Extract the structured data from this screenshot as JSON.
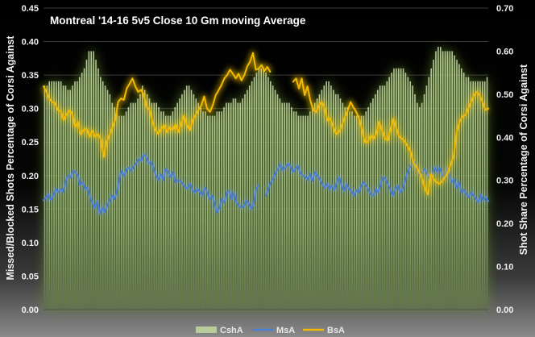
{
  "chart_data": {
    "type": "line",
    "title": "Montreal '14-16 5v5 Close 10 Gm moving Average",
    "ylabel": "Missed/Blocked Shots Percentage of Corsi Against",
    "y2label": "Shot Share Percentage of Corsi Against",
    "ylim": [
      0,
      0.45
    ],
    "y2lim": [
      0,
      0.7
    ],
    "yticks": [
      "0.00",
      "0.05",
      "0.10",
      "0.15",
      "0.20",
      "0.25",
      "0.30",
      "0.35",
      "0.40",
      "0.45"
    ],
    "y2ticks": [
      "0.00",
      "0.10",
      "0.20",
      "0.30",
      "0.40",
      "0.50",
      "0.60",
      "0.70"
    ],
    "grid": true,
    "legend_position": "bottom",
    "colors": {
      "CshA": "#b9cc9c",
      "MsA": "#4a7fd6",
      "BsA": "#f5b800",
      "glow_bars": "#6e9a2e",
      "glow_line": "#ffd000"
    },
    "series": [
      {
        "name": "CshA",
        "kind": "bar",
        "axis": "right",
        "values": [
          0.52,
          0.52,
          0.53,
          0.53,
          0.53,
          0.53,
          0.53,
          0.53,
          0.52,
          0.52,
          0.51,
          0.51,
          0.52,
          0.53,
          0.53,
          0.54,
          0.55,
          0.56,
          0.58,
          0.6,
          0.6,
          0.6,
          0.58,
          0.56,
          0.54,
          0.53,
          0.52,
          0.51,
          0.5,
          0.48,
          0.47,
          0.46,
          0.45,
          0.45,
          0.45,
          0.46,
          0.47,
          0.48,
          0.48,
          0.48,
          0.49,
          0.5,
          0.52,
          0.51,
          0.5,
          0.49,
          0.48,
          0.48,
          0.48,
          0.47,
          0.46,
          0.46,
          0.45,
          0.45,
          0.45,
          0.46,
          0.47,
          0.48,
          0.49,
          0.5,
          0.51,
          0.52,
          0.52,
          0.51,
          0.5,
          0.49,
          0.48,
          0.47,
          0.46,
          0.46,
          0.45,
          0.45,
          0.45,
          0.45,
          0.46,
          0.46,
          0.46,
          0.47,
          0.48,
          0.48,
          0.48,
          0.49,
          0.49,
          0.48,
          0.48,
          0.49,
          0.5,
          0.51,
          0.52,
          0.53,
          0.54,
          0.55,
          0.56,
          0.56,
          0.56,
          0.55,
          0.54,
          0.53,
          0.52,
          0.51,
          0.5,
          0.49,
          0.48,
          0.48,
          0.48,
          0.48,
          0.47,
          0.46,
          0.46,
          0.45,
          0.45,
          0.45,
          0.45,
          0.45,
          0.46,
          0.47,
          0.48,
          0.49,
          0.5,
          0.51,
          0.52,
          0.53,
          0.53,
          0.52,
          0.51,
          0.5,
          0.5,
          0.49,
          0.48,
          0.47,
          0.47,
          0.46,
          0.46,
          0.45,
          0.45,
          0.45,
          0.45,
          0.45,
          0.46,
          0.47,
          0.48,
          0.49,
          0.5,
          0.51,
          0.52,
          0.52,
          0.52,
          0.53,
          0.54,
          0.55,
          0.56,
          0.56,
          0.56,
          0.56,
          0.56,
          0.55,
          0.54,
          0.53,
          0.52,
          0.5,
          0.48,
          0.47,
          0.48,
          0.5,
          0.52,
          0.54,
          0.56,
          0.58,
          0.6,
          0.61,
          0.61,
          0.6,
          0.6,
          0.6,
          0.6,
          0.6,
          0.59,
          0.58,
          0.57,
          0.56,
          0.55,
          0.54,
          0.54,
          0.53,
          0.53,
          0.53,
          0.53,
          0.53,
          0.53,
          0.53,
          0.54
        ]
      },
      {
        "name": "MsA",
        "kind": "line",
        "axis": "left",
        "values": [
          0.163,
          0.167,
          0.172,
          0.163,
          0.17,
          0.18,
          0.175,
          0.18,
          0.176,
          0.19,
          0.2,
          0.197,
          0.207,
          0.205,
          0.2,
          0.186,
          0.19,
          0.18,
          0.182,
          0.17,
          0.158,
          0.152,
          0.162,
          0.143,
          0.152,
          0.145,
          0.155,
          0.162,
          0.17,
          0.165,
          0.175,
          0.195,
          0.207,
          0.2,
          0.21,
          0.212,
          0.207,
          0.214,
          0.219,
          0.225,
          0.222,
          0.232,
          0.228,
          0.218,
          0.22,
          0.212,
          0.2,
          0.194,
          0.202,
          0.193,
          0.21,
          0.206,
          0.198,
          0.205,
          0.19,
          0.193,
          0.192,
          0.188,
          0.182,
          0.181,
          0.188,
          0.178,
          0.175,
          0.18,
          0.176,
          0.17,
          0.182,
          0.175,
          0.165,
          0.17,
          0.158,
          0.145,
          0.152,
          0.165,
          0.16,
          0.175,
          0.177,
          0.165,
          0.175,
          0.16,
          0.155,
          0.152,
          0.155,
          0.163,
          0.158,
          0.15,
          0.158,
          0.18,
          0.185,
          null,
          null,
          0.17,
          0.18,
          0.19,
          0.195,
          0.205,
          0.21,
          0.217,
          0.208,
          0.212,
          0.218,
          0.215,
          0.205,
          0.21,
          0.215,
          0.205,
          0.2,
          0.198,
          0.194,
          0.202,
          0.192,
          0.205,
          0.2,
          0.196,
          0.188,
          0.182,
          0.188,
          0.18,
          0.185,
          0.178,
          0.19,
          0.198,
          0.185,
          0.177,
          0.188,
          0.18,
          0.177,
          0.17,
          0.178,
          0.175,
          0.185,
          0.19,
          0.185,
          0.178,
          0.172,
          0.17,
          0.18,
          0.175,
          0.188,
          0.198,
          0.195,
          0.187,
          0.178,
          0.17,
          0.18,
          0.185,
          0.175,
          0.18,
          0.192,
          0.205,
          0.213,
          0.218,
          0.22,
          0.21,
          0.2,
          0.205,
          0.21,
          0.202,
          0.195,
          0.2,
          0.213,
          0.205,
          0.212,
          0.203,
          0.195,
          0.21,
          0.205,
          0.19,
          0.195,
          0.182,
          0.19,
          0.175,
          0.178,
          0.172,
          0.168,
          0.175,
          0.17,
          0.165,
          0.16,
          0.172,
          0.162,
          0.168,
          0.162
        ]
      },
      {
        "name": "BsA",
        "kind": "line",
        "axis": "left",
        "values": [
          0.333,
          0.325,
          0.315,
          0.31,
          0.308,
          0.298,
          0.296,
          0.283,
          0.291,
          0.297,
          0.293,
          0.273,
          0.28,
          0.262,
          0.268,
          0.27,
          0.258,
          0.267,
          0.258,
          0.262,
          0.255,
          0.228,
          0.25,
          0.26,
          0.272,
          0.283,
          0.31,
          0.315,
          0.313,
          0.33,
          0.337,
          0.345,
          0.333,
          0.325,
          0.328,
          0.32,
          0.302,
          0.298,
          0.28,
          0.268,
          0.262,
          0.27,
          0.275,
          0.265,
          0.272,
          0.268,
          0.276,
          0.265,
          0.278,
          0.29,
          0.275,
          0.268,
          0.283,
          0.29,
          0.298,
          0.305,
          0.318,
          0.3,
          0.295,
          0.305,
          0.32,
          0.327,
          0.335,
          0.345,
          0.35,
          0.358,
          0.352,
          0.345,
          0.352,
          0.342,
          0.35,
          0.363,
          0.37,
          0.383,
          0.358,
          0.36,
          0.365,
          0.356,
          0.362,
          0.355,
          null,
          null,
          null,
          null,
          null,
          null,
          null,
          0.34,
          0.345,
          0.33,
          0.345,
          0.32,
          0.333,
          0.312,
          0.298,
          0.295,
          0.305,
          0.31,
          0.3,
          0.282,
          0.285,
          0.272,
          0.262,
          0.265,
          0.275,
          0.287,
          0.297,
          0.31,
          0.302,
          0.295,
          0.285,
          0.268,
          0.25,
          0.25,
          0.26,
          0.255,
          0.263,
          0.28,
          0.268,
          0.255,
          0.253,
          0.27,
          0.285,
          0.27,
          0.258,
          0.255,
          0.25,
          0.243,
          0.235,
          0.218,
          0.213,
          0.205,
          0.195,
          0.18,
          0.172,
          0.202,
          0.195,
          0.19,
          0.188,
          0.192,
          0.198,
          0.205,
          0.218,
          0.23,
          0.265,
          0.28,
          0.288,
          0.29,
          0.3,
          0.31,
          0.32,
          0.325,
          0.32,
          0.31,
          0.298,
          0.3
        ]
      }
    ]
  }
}
